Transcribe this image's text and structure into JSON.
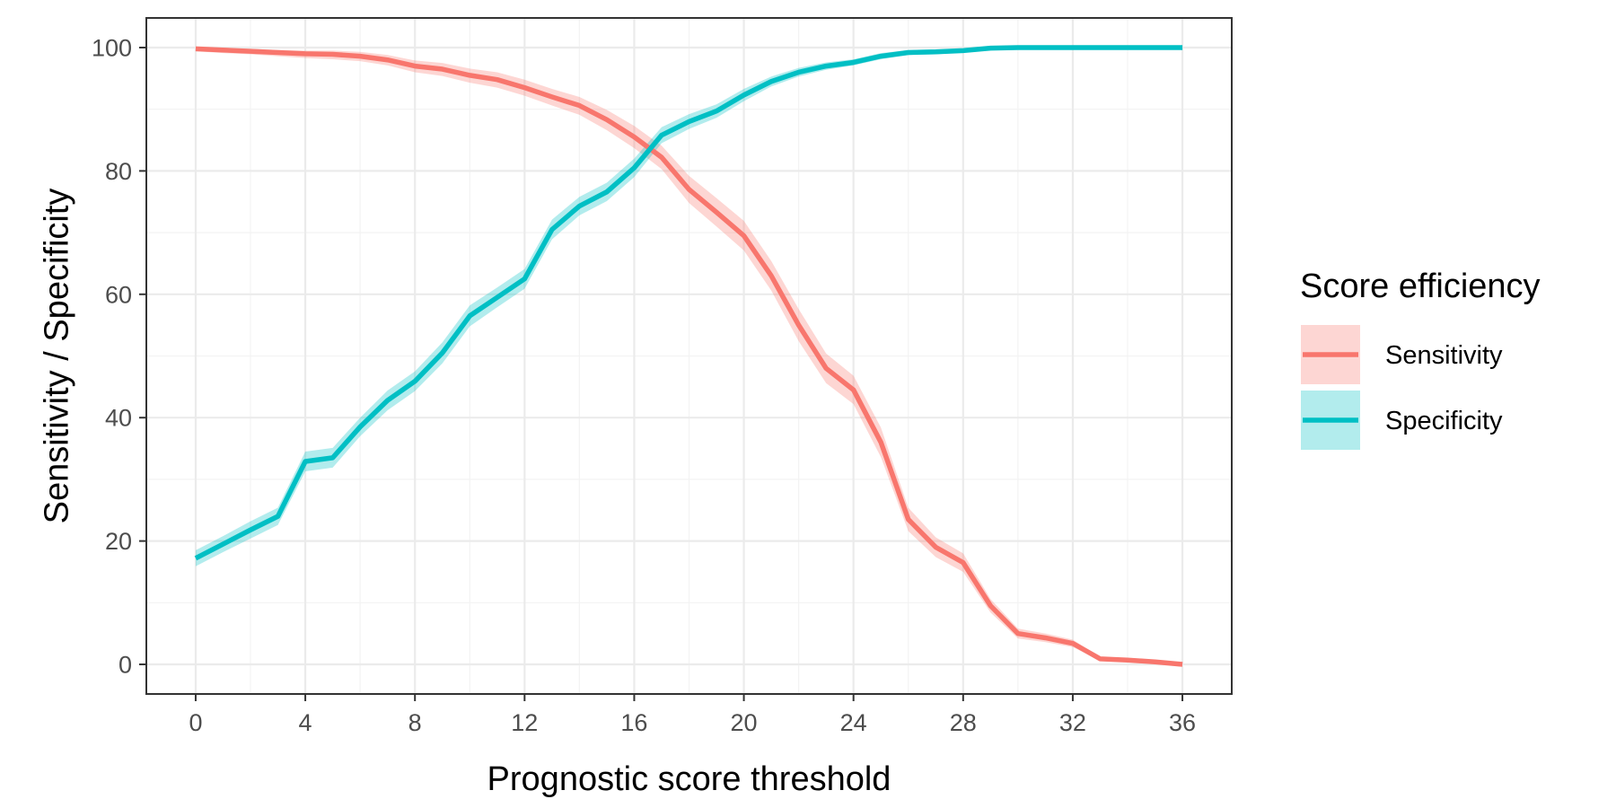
{
  "chart_data": {
    "type": "line",
    "xlabel": "Prognostic score threshold",
    "ylabel": "Sensitivity / Specificity",
    "xlim": [
      -1.8,
      37.8
    ],
    "ylim": [
      -4.8,
      104.8
    ],
    "x_ticks": [
      0,
      4,
      8,
      12,
      16,
      20,
      24,
      28,
      32,
      36
    ],
    "y_ticks": [
      0,
      20,
      40,
      60,
      80,
      100
    ],
    "grid": true,
    "legend": {
      "title": "Score efficiency",
      "placement": "right"
    },
    "x": [
      0,
      1,
      2,
      3,
      4,
      5,
      6,
      7,
      8,
      9,
      10,
      11,
      12,
      13,
      14,
      15,
      16,
      17,
      18,
      19,
      20,
      21,
      22,
      23,
      24,
      25,
      26,
      27,
      28,
      29,
      30,
      31,
      32,
      33,
      34,
      35,
      36
    ],
    "series": [
      {
        "name": "Sensitivity",
        "color": "#F8766D",
        "band_color": "#F8766D",
        "values": [
          99.8,
          99.6,
          99.4,
          99.2,
          99.0,
          98.9,
          98.6,
          98.0,
          97.0,
          96.5,
          95.5,
          94.8,
          93.5,
          92.0,
          90.6,
          88.3,
          85.5,
          82.2,
          77.0,
          73.3,
          69.5,
          63.0,
          55.0,
          48.0,
          44.5,
          36.0,
          23.5,
          19.0,
          16.5,
          9.5,
          5.0,
          4.3,
          3.4,
          0.9,
          0.7,
          0.4,
          0.0
        ],
        "lower": [
          99.4,
          99.1,
          98.9,
          98.6,
          98.3,
          98.1,
          97.8,
          97.1,
          96.0,
          95.4,
          94.3,
          93.5,
          92.2,
          90.6,
          89.1,
          86.6,
          83.7,
          80.3,
          74.8,
          71.0,
          67.1,
          60.6,
          52.4,
          45.6,
          42.2,
          33.6,
          21.6,
          17.4,
          15.0,
          8.4,
          4.2,
          3.6,
          2.8,
          0.6,
          0.4,
          0.2,
          0.0
        ],
        "upper": [
          100.0,
          99.9,
          99.8,
          99.6,
          99.5,
          99.5,
          99.3,
          98.8,
          97.9,
          97.5,
          96.6,
          96.0,
          94.8,
          93.3,
          92.0,
          89.9,
          87.3,
          84.1,
          79.2,
          75.6,
          71.9,
          65.4,
          57.6,
          50.4,
          46.8,
          38.4,
          25.4,
          20.6,
          18.0,
          10.6,
          5.8,
          5.0,
          4.0,
          1.2,
          1.0,
          0.7,
          0.3
        ]
      },
      {
        "name": "Specificity",
        "color": "#00BFC4",
        "band_color": "#00BFC4",
        "values": [
          17.2,
          19.5,
          21.8,
          24.0,
          32.9,
          33.5,
          38.5,
          42.8,
          45.9,
          50.5,
          56.5,
          59.5,
          62.5,
          70.5,
          74.3,
          76.6,
          80.5,
          85.8,
          88.0,
          89.7,
          92.3,
          94.5,
          96.0,
          97.0,
          97.6,
          98.6,
          99.2,
          99.3,
          99.5,
          99.9,
          100.0,
          100.0,
          100.0,
          100.0,
          100.0,
          100.0,
          100.0
        ],
        "lower": [
          15.9,
          18.2,
          20.4,
          22.6,
          31.3,
          31.9,
          37.0,
          41.2,
          44.3,
          48.8,
          54.8,
          57.9,
          60.9,
          68.9,
          72.8,
          75.1,
          79.0,
          84.5,
          86.8,
          88.6,
          91.3,
          93.7,
          95.3,
          96.4,
          97.1,
          98.1,
          98.8,
          98.9,
          99.2,
          99.7,
          99.8,
          99.8,
          99.8,
          99.8,
          99.8,
          99.8,
          99.8
        ],
        "upper": [
          18.5,
          20.8,
          23.2,
          25.4,
          34.5,
          35.1,
          40.0,
          44.4,
          47.5,
          52.2,
          58.2,
          61.1,
          64.1,
          72.1,
          75.8,
          78.1,
          82.0,
          87.1,
          89.2,
          90.8,
          93.3,
          95.3,
          96.7,
          97.6,
          98.1,
          99.1,
          99.6,
          99.7,
          99.8,
          100.0,
          100.0,
          100.0,
          100.0,
          100.0,
          100.0,
          100.0,
          100.0
        ]
      }
    ]
  },
  "colors": {
    "panel_border": "#333333",
    "grid_major": "#ebebeb",
    "grid_minor": "#f3f3f3",
    "tick_text": "#4d4d4d"
  }
}
